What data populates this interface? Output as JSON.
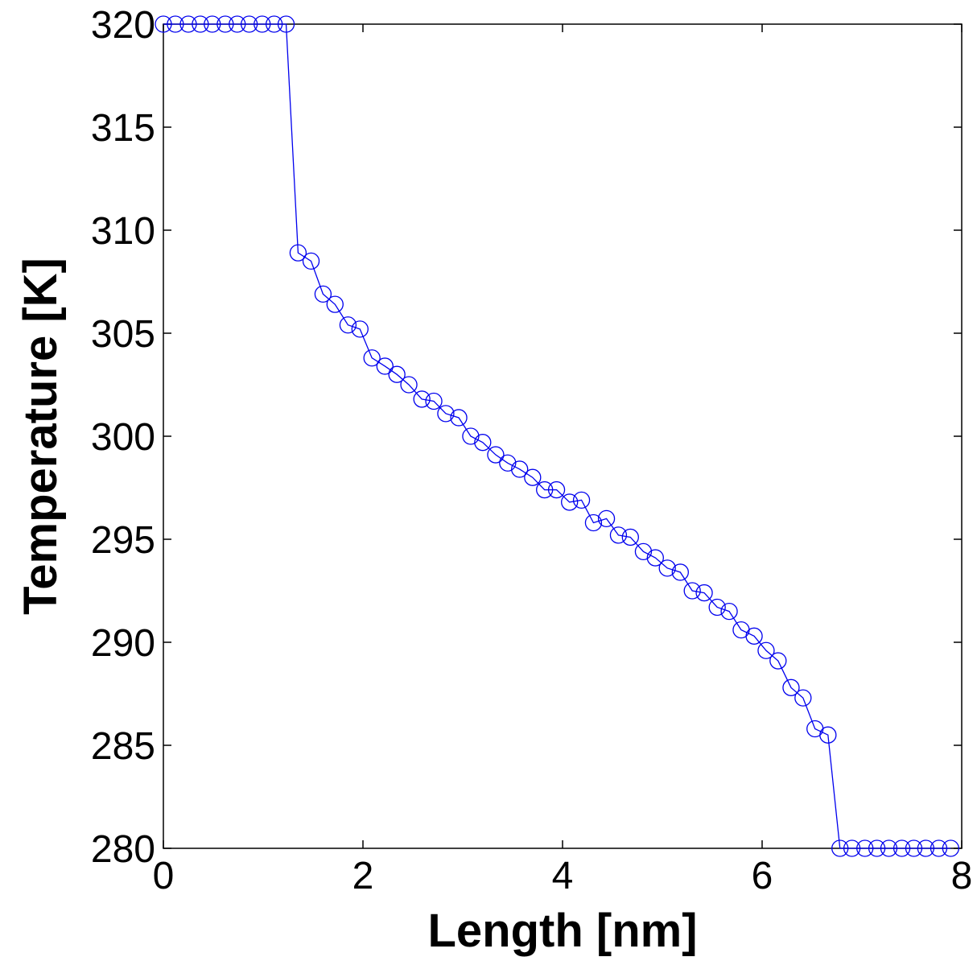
{
  "chart_data": {
    "type": "line",
    "title": "",
    "xlabel": "Length [nm]",
    "ylabel": "Temperature [K]",
    "xlim": [
      0,
      8
    ],
    "ylim": [
      280,
      320
    ],
    "xticks": [
      0,
      2,
      4,
      6,
      8
    ],
    "yticks": [
      280,
      285,
      290,
      295,
      300,
      305,
      310,
      315,
      320
    ],
    "xtick_labels": [
      "0",
      "2",
      "4",
      "6",
      "8"
    ],
    "ytick_labels": [
      "280",
      "285",
      "290",
      "295",
      "300",
      "305",
      "310",
      "315",
      "320"
    ],
    "grid": false,
    "legend": "none",
    "marker": "circle-open",
    "series": [
      {
        "color": "#0000ee",
        "x": [
          0.0,
          0.12,
          0.25,
          0.37,
          0.49,
          0.62,
          0.74,
          0.86,
          0.99,
          1.11,
          1.23,
          1.35,
          1.48,
          1.6,
          1.72,
          1.85,
          1.97,
          2.09,
          2.22,
          2.34,
          2.46,
          2.59,
          2.71,
          2.83,
          2.96,
          3.08,
          3.2,
          3.33,
          3.45,
          3.57,
          3.7,
          3.82,
          3.94,
          4.07,
          4.19,
          4.31,
          4.44,
          4.56,
          4.68,
          4.81,
          4.93,
          5.05,
          5.18,
          5.3,
          5.42,
          5.55,
          5.67,
          5.79,
          5.92,
          6.04,
          6.16,
          6.29,
          6.41,
          6.53,
          6.66,
          6.78,
          6.9,
          7.03,
          7.15,
          7.27,
          7.4,
          7.52,
          7.64,
          7.77,
          7.89
        ],
        "y": [
          320.0,
          320.0,
          320.0,
          320.0,
          320.0,
          320.0,
          320.0,
          320.0,
          320.0,
          320.0,
          320.0,
          308.9,
          308.5,
          306.9,
          306.4,
          305.4,
          305.2,
          303.8,
          303.4,
          303.0,
          302.5,
          301.8,
          301.7,
          301.1,
          300.9,
          300.0,
          299.7,
          299.1,
          298.7,
          298.4,
          298.0,
          297.4,
          297.4,
          296.8,
          296.9,
          295.8,
          296.0,
          295.2,
          295.1,
          294.4,
          294.1,
          293.6,
          293.4,
          292.5,
          292.4,
          291.7,
          291.5,
          290.6,
          290.3,
          289.6,
          289.1,
          287.8,
          287.3,
          285.8,
          285.5,
          280.0,
          280.0,
          280.0,
          280.0,
          280.0,
          280.0,
          280.0,
          280.0,
          280.0,
          280.0
        ]
      }
    ]
  }
}
